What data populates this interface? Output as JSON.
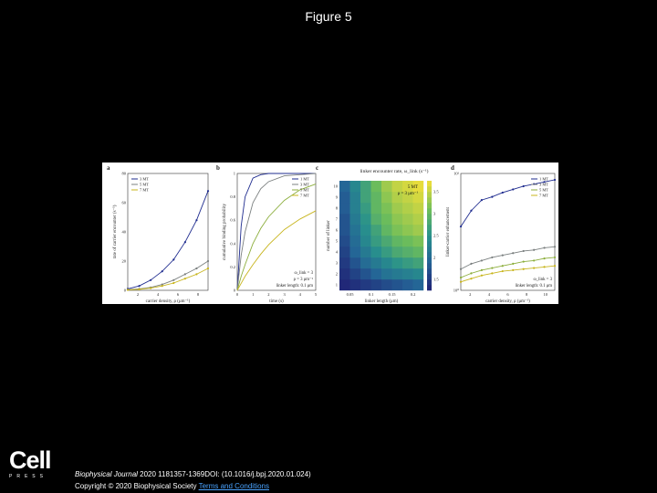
{
  "page": {
    "title": "Figure 5"
  },
  "logo": {
    "main": "Cell",
    "sub": "PRESS"
  },
  "footer": {
    "journal": "Biophysical Journal",
    "citation": " 2020 1181357-1369DOI: (10.1016/j.bpj.2020.01.024)",
    "copyright": "Copyright © 2020 Biophysical Society ",
    "terms_link": "Terms and Conditions"
  },
  "colors": {
    "blue": "#1f2c8f",
    "gray": "#7b8080",
    "yellow": "#c8b51e",
    "green": "#8cae3c",
    "ylgn": "#b8c83a"
  },
  "chart_data": [
    {
      "panel": "a",
      "type": "line",
      "xlabel": "carrier density, ρ (μm⁻¹)",
      "ylabel": "rate of carrier encounter (s⁻¹)",
      "xlim": [
        1,
        8
      ],
      "ylim": [
        0,
        80
      ],
      "xticks": [
        "2",
        "4",
        "6",
        "8"
      ],
      "yticks": [
        "0",
        "20",
        "40",
        "60",
        "80"
      ],
      "x": [
        1,
        2,
        3,
        4,
        5,
        6,
        7,
        8
      ],
      "series": [
        {
          "name": "3 MT",
          "color": "#1f2c8f",
          "values": [
            1,
            3,
            7,
            13,
            21,
            33,
            48,
            68
          ]
        },
        {
          "name": "5 MT",
          "color": "#7b8080",
          "values": [
            0.5,
            1,
            2,
            4,
            7,
            11,
            15,
            20
          ]
        },
        {
          "name": "7 MT",
          "color": "#c8b51e",
          "values": [
            0.3,
            0.7,
            1.5,
            3,
            5,
            8,
            11,
            15
          ]
        }
      ],
      "legend": "top-left"
    },
    {
      "panel": "b",
      "type": "line",
      "xlabel": "time (s)",
      "ylabel": "cumulative binding probability",
      "xlim": [
        0,
        5
      ],
      "ylim": [
        0,
        1
      ],
      "xticks": [
        "0",
        "1",
        "2",
        "3",
        "4",
        "5"
      ],
      "yticks": [
        "0",
        "0.2",
        "0.4",
        "0.6",
        "0.8",
        "1"
      ],
      "x": [
        0,
        0.25,
        0.5,
        1,
        1.5,
        2,
        3,
        4,
        5
      ],
      "series": [
        {
          "name": "1 MT",
          "color": "#1f2c8f",
          "values": [
            0,
            0.55,
            0.8,
            0.96,
            0.99,
            1,
            1,
            1,
            1
          ]
        },
        {
          "name": "3 MT",
          "color": "#7b8080",
          "values": [
            0,
            0.3,
            0.5,
            0.75,
            0.87,
            0.93,
            0.98,
            0.99,
            1
          ]
        },
        {
          "name": "5 MT",
          "color": "#8cae3c",
          "values": [
            0,
            0.12,
            0.22,
            0.4,
            0.53,
            0.63,
            0.77,
            0.86,
            0.91
          ]
        },
        {
          "name": "7 MT",
          "color": "#c8b51e",
          "values": [
            0,
            0.06,
            0.12,
            0.22,
            0.31,
            0.39,
            0.52,
            0.61,
            0.68
          ]
        }
      ],
      "annotations": [
        "ω_link = 3",
        "ρ = 3 μm⁻¹",
        "linker length: 0.1 μm"
      ],
      "legend": "top-right"
    },
    {
      "panel": "c",
      "type": "heatmap",
      "title": "linker encounter rate, ω_link (s⁻¹)",
      "xlabel": "linker length (μm)",
      "ylabel": "number of linker",
      "xticks": [
        "0.05",
        "0.1",
        "0.15",
        "0.2"
      ],
      "yticks": [
        "1",
        "2",
        "3",
        "4",
        "5",
        "6",
        "7",
        "8",
        "9",
        "10"
      ],
      "colorbar_ticks": [
        "1.5",
        "2",
        "2.5",
        "3",
        "3.5"
      ],
      "annotations": [
        "5 MT",
        "ρ = 3 μm⁻¹"
      ],
      "rows": 10,
      "cols": 8,
      "values": [
        [
          1.0,
          1.1,
          1.2,
          1.3,
          1.4,
          1.5,
          1.6,
          1.7
        ],
        [
          1.1,
          1.3,
          1.5,
          1.7,
          1.9,
          2.0,
          2.1,
          2.2
        ],
        [
          1.2,
          1.5,
          1.8,
          2.0,
          2.2,
          2.4,
          2.5,
          2.6
        ],
        [
          1.3,
          1.7,
          2.0,
          2.3,
          2.5,
          2.7,
          2.8,
          2.9
        ],
        [
          1.4,
          1.8,
          2.2,
          2.5,
          2.7,
          2.9,
          3.0,
          3.1
        ],
        [
          1.5,
          1.9,
          2.3,
          2.6,
          2.9,
          3.1,
          3.2,
          3.3
        ],
        [
          1.5,
          2.0,
          2.4,
          2.8,
          3.0,
          3.2,
          3.3,
          3.4
        ],
        [
          1.6,
          2.1,
          2.5,
          2.9,
          3.1,
          3.3,
          3.4,
          3.5
        ],
        [
          1.6,
          2.1,
          2.6,
          2.9,
          3.2,
          3.4,
          3.5,
          3.6
        ],
        [
          1.7,
          2.2,
          2.6,
          3.0,
          3.3,
          3.5,
          3.6,
          3.7
        ]
      ]
    },
    {
      "panel": "d",
      "type": "line",
      "xlabel": "carrier density, ρ (μm⁻¹)",
      "ylabel": "linker-carrier enhancement",
      "xlim": [
        1,
        10
      ],
      "ylim": [
        0,
        1.1
      ],
      "xticks": [
        "2",
        "4",
        "6",
        "8",
        "10"
      ],
      "yticks": [
        "10⁰",
        "10¹"
      ],
      "x": [
        1,
        2,
        3,
        4,
        5,
        6,
        7,
        8,
        9,
        10
      ],
      "series": [
        {
          "name": "1 MT",
          "color": "#1f2c8f",
          "values": [
            0.6,
            0.75,
            0.85,
            0.88,
            0.92,
            0.95,
            0.98,
            1.0,
            1.02,
            1.04
          ]
        },
        {
          "name": "3 MT",
          "color": "#7b8080",
          "values": [
            0.2,
            0.25,
            0.28,
            0.31,
            0.33,
            0.35,
            0.37,
            0.38,
            0.4,
            0.41
          ]
        },
        {
          "name": "5 MT",
          "color": "#8cae3c",
          "values": [
            0.12,
            0.16,
            0.19,
            0.21,
            0.23,
            0.25,
            0.27,
            0.28,
            0.3,
            0.31
          ]
        },
        {
          "name": "7 MT",
          "color": "#c8b51e",
          "values": [
            0.08,
            0.11,
            0.14,
            0.16,
            0.18,
            0.19,
            0.2,
            0.21,
            0.22,
            0.23
          ]
        }
      ],
      "annotations": [
        "ω_link = 3",
        "linker length: 0.1 μm"
      ],
      "legend": "top-right"
    }
  ]
}
